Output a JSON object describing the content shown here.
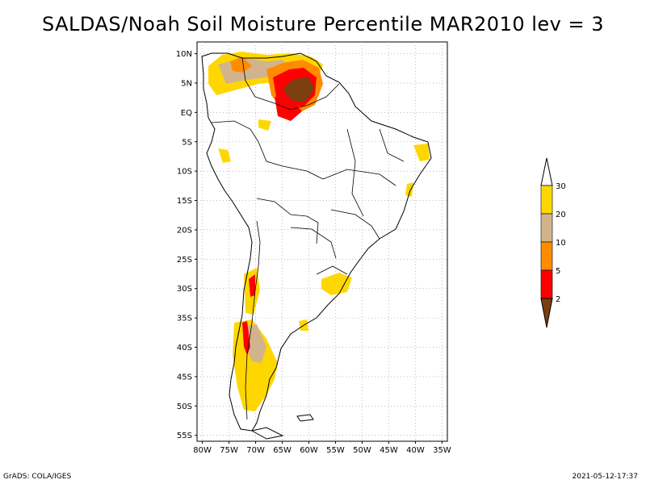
{
  "title": "SALDAS/Noah Soil Moisture Percentile MAR2010 lev = 3",
  "credit": "GrADS: COLA/IGES",
  "timestamp": "2021-05-12-17:37",
  "map": {
    "lat_labels": [
      "10N",
      "5N",
      "EQ",
      "5S",
      "10S",
      "15S",
      "20S",
      "25S",
      "30S",
      "35S",
      "40S",
      "45S",
      "50S",
      "55S"
    ],
    "lon_labels": [
      "80W",
      "75W",
      "70W",
      "65W",
      "60W",
      "55W",
      "50W",
      "45W",
      "40W",
      "35W"
    ],
    "lat_range": [
      -56,
      12
    ],
    "lon_range": [
      -81,
      -34
    ],
    "grid": true
  },
  "colorbar": {
    "levels": [
      "2",
      "5",
      "10",
      "20",
      "30"
    ],
    "colors": [
      "#7a3e10",
      "#ff0000",
      "#ff8c00",
      "#d2b48c",
      "#ffd700",
      "#ffffff"
    ]
  }
}
